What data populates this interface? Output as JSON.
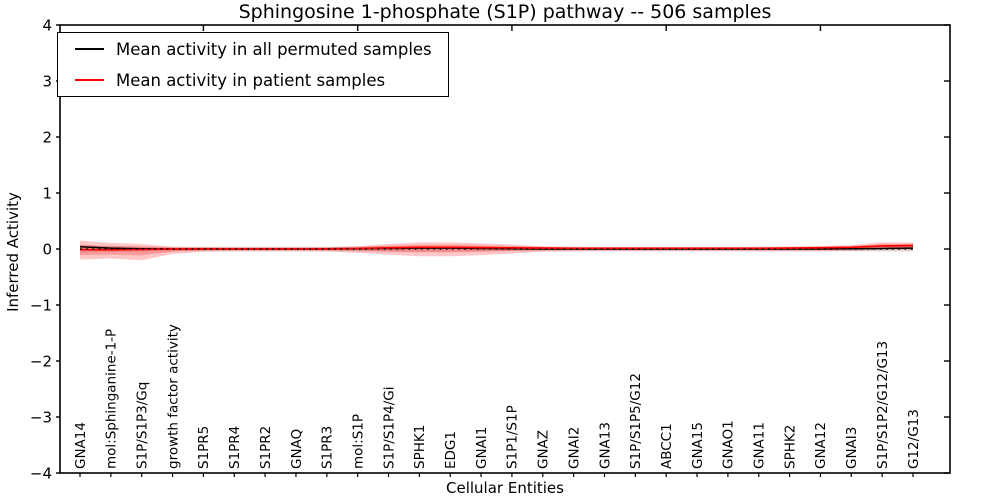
{
  "figure": {
    "title": "Sphingosine 1-phosphate (S1P) pathway -- 506 samples",
    "xlabel": "Cellular Entities",
    "ylabel": "Inferred Activity"
  },
  "chart_data": {
    "type": "line",
    "title": "Sphingosine 1-phosphate (S1P) pathway -- 506 samples",
    "xlabel": "Cellular Entities",
    "ylabel": "Inferred Activity",
    "ylim": [
      -4,
      4
    ],
    "yticks": [
      -4,
      -3,
      -2,
      -1,
      0,
      1,
      2,
      3,
      4
    ],
    "grid": false,
    "legend_position": "upper left",
    "categories": [
      "GNA14",
      "mol:Sphinganine-1-P",
      "S1P/S1P3/Gq",
      "growth factor activity",
      "S1PR5",
      "S1PR4",
      "S1PR2",
      "GNAQ",
      "S1PR3",
      "mol:S1P",
      "S1P/S1P4/Gi",
      "SPHK1",
      "EDG1",
      "GNAI1",
      "S1P1/S1P",
      "GNAZ",
      "GNAI2",
      "GNA13",
      "S1P/S1P5/G12",
      "ABCC1",
      "GNA15",
      "GNAO1",
      "GNA11",
      "SPHK2",
      "GNA12",
      "GNAI3",
      "S1P/S1P2/G12/G13",
      "G12/G13"
    ],
    "series": [
      {
        "name": "Mean activity in all permuted samples",
        "color": "#000000",
        "style": "solid",
        "values": [
          0.04,
          0.015,
          0.005,
          0,
          0,
          0,
          0,
          0,
          0,
          0.005,
          0.01,
          0.015,
          0.015,
          0.01,
          0.005,
          0,
          0,
          0,
          0,
          0,
          0,
          0,
          0,
          0,
          0,
          0.005,
          0.01,
          0.015
        ]
      },
      {
        "name": "Mean activity in patient samples",
        "color": "#ff0000",
        "style": "solid",
        "values": [
          -0.01,
          -0.015,
          -0.01,
          0,
          0.005,
          0.005,
          0.005,
          0.005,
          0.005,
          0.01,
          0.02,
          0.03,
          0.03,
          0.025,
          0.02,
          0.015,
          0.012,
          0.012,
          0.012,
          0.012,
          0.012,
          0.012,
          0.012,
          0.015,
          0.02,
          0.03,
          0.055,
          0.06
        ]
      }
    ],
    "bands": [
      {
        "name": "permuted-std-band",
        "color": "#000000",
        "alpha": 0.12,
        "upper": [
          0.06,
          0.05,
          0.045,
          0.04,
          0.04,
          0.04,
          0.04,
          0.04,
          0.04,
          0.045,
          0.05,
          0.05,
          0.05,
          0.045,
          0.04,
          0.04,
          0.04,
          0.04,
          0.04,
          0.04,
          0.04,
          0.04,
          0.04,
          0.04,
          0.04,
          0.04,
          0.045,
          0.045
        ],
        "lower": [
          -0.06,
          -0.05,
          -0.045,
          -0.04,
          -0.04,
          -0.04,
          -0.04,
          -0.04,
          -0.04,
          -0.045,
          -0.05,
          -0.05,
          -0.05,
          -0.045,
          -0.04,
          -0.04,
          -0.04,
          -0.04,
          -0.04,
          -0.04,
          -0.04,
          -0.04,
          -0.04,
          -0.04,
          -0.04,
          -0.04,
          -0.045,
          -0.045
        ]
      },
      {
        "name": "patient-std-band",
        "color": "#ff0000",
        "alpha": 0.22,
        "upper": [
          0.15,
          0.11,
          0.09,
          0.04,
          0.03,
          0.025,
          0.025,
          0.025,
          0.03,
          0.05,
          0.09,
          0.115,
          0.12,
          0.1,
          0.08,
          0.05,
          0.04,
          0.035,
          0.035,
          0.035,
          0.035,
          0.035,
          0.04,
          0.045,
          0.055,
          0.07,
          0.12,
          0.115
        ],
        "lower": [
          -0.19,
          -0.17,
          -0.2,
          -0.09,
          -0.05,
          -0.04,
          -0.04,
          -0.04,
          -0.045,
          -0.07,
          -0.1,
          -0.13,
          -0.13,
          -0.11,
          -0.08,
          -0.05,
          -0.04,
          -0.035,
          -0.035,
          -0.035,
          -0.035,
          -0.035,
          -0.04,
          -0.04,
          -0.04,
          -0.035,
          -0.02,
          -0.025
        ]
      }
    ],
    "zero_line": {
      "style": "dotted",
      "color": "#000000",
      "y": 0
    }
  }
}
